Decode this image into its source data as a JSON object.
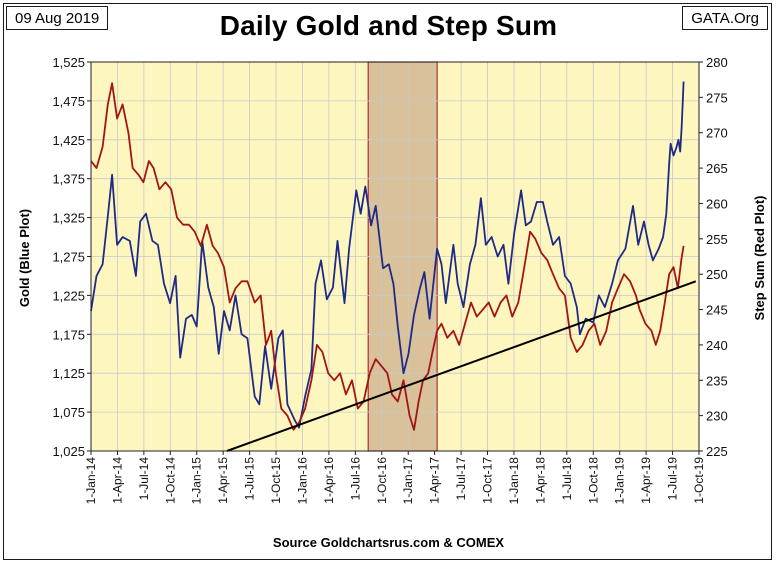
{
  "header": {
    "date": "09 Aug 2019",
    "source_org": "GATA.Org"
  },
  "chart_data": {
    "type": "line",
    "title": "Daily Gold and Step Sum",
    "source_note": "Source Goldchartsrus.com & COMEX",
    "ylabel_left": "Gold   (Blue Plot)",
    "ylabel_right": "Step Sum   (Red Plot)",
    "ylim_left": [
      1025,
      1525
    ],
    "ylim_right": [
      225,
      280
    ],
    "y_ticks_left": [
      "1,025",
      "1,075",
      "1,125",
      "1,175",
      "1,225",
      "1,275",
      "1,325",
      "1,375",
      "1,425",
      "1,475",
      "1,525"
    ],
    "y_ticks_right": [
      "225",
      "230",
      "235",
      "240",
      "245",
      "250",
      "255",
      "260",
      "265",
      "270",
      "275",
      "280"
    ],
    "x_ticks": [
      "1-Jan-14",
      "1-Apr-14",
      "1-Jul-14",
      "1-Oct-14",
      "1-Jan-15",
      "1-Apr-15",
      "1-Jul-15",
      "1-Oct-15",
      "1-Jan-16",
      "1-Apr-16",
      "1-Jul-16",
      "1-Oct-16",
      "1-Jan-17",
      "1-Apr-17",
      "1-Jul-17",
      "1-Oct-17",
      "1-Jan-18",
      "1-Apr-18",
      "1-Jul-18",
      "1-Oct-18",
      "1-Jan-19",
      "1-Apr-19",
      "1-Jul-19",
      "1-Oct-19"
    ],
    "x_range": [
      "2014-01-01",
      "2019-10-01"
    ],
    "grid": true,
    "background_color": "#fdf7bf",
    "shaded_region": {
      "x": [
        "2016-08-15",
        "2017-04-10"
      ],
      "color": "#d9c19a",
      "border": "#b03030"
    },
    "series": [
      {
        "name": "Gold",
        "axis": "left",
        "color": "#1f2a88",
        "points": [
          [
            "2014-01-01",
            1205
          ],
          [
            "2014-01-20",
            1250
          ],
          [
            "2014-02-10",
            1265
          ],
          [
            "2014-03-01",
            1330
          ],
          [
            "2014-03-15",
            1380
          ],
          [
            "2014-04-01",
            1290
          ],
          [
            "2014-04-20",
            1300
          ],
          [
            "2014-05-15",
            1295
          ],
          [
            "2014-06-05",
            1250
          ],
          [
            "2014-06-20",
            1320
          ],
          [
            "2014-07-10",
            1330
          ],
          [
            "2014-08-01",
            1295
          ],
          [
            "2014-08-20",
            1290
          ],
          [
            "2014-09-10",
            1240
          ],
          [
            "2014-10-01",
            1215
          ],
          [
            "2014-10-20",
            1250
          ],
          [
            "2014-11-05",
            1145
          ],
          [
            "2014-11-25",
            1195
          ],
          [
            "2014-12-15",
            1200
          ],
          [
            "2015-01-01",
            1185
          ],
          [
            "2015-01-20",
            1295
          ],
          [
            "2015-02-10",
            1235
          ],
          [
            "2015-03-01",
            1210
          ],
          [
            "2015-03-18",
            1150
          ],
          [
            "2015-04-05",
            1205
          ],
          [
            "2015-04-25",
            1180
          ],
          [
            "2015-05-15",
            1225
          ],
          [
            "2015-06-05",
            1175
          ],
          [
            "2015-06-25",
            1170
          ],
          [
            "2015-07-20",
            1095
          ],
          [
            "2015-08-05",
            1085
          ],
          [
            "2015-08-25",
            1160
          ],
          [
            "2015-09-15",
            1105
          ],
          [
            "2015-10-10",
            1170
          ],
          [
            "2015-10-25",
            1180
          ],
          [
            "2015-11-10",
            1085
          ],
          [
            "2015-12-05",
            1065
          ],
          [
            "2015-12-20",
            1055
          ],
          [
            "2016-01-10",
            1095
          ],
          [
            "2016-02-01",
            1130
          ],
          [
            "2016-02-15",
            1240
          ],
          [
            "2016-03-05",
            1270
          ],
          [
            "2016-03-25",
            1220
          ],
          [
            "2016-04-15",
            1235
          ],
          [
            "2016-05-01",
            1295
          ],
          [
            "2016-05-25",
            1215
          ],
          [
            "2016-06-10",
            1285
          ],
          [
            "2016-07-05",
            1360
          ],
          [
            "2016-07-20",
            1330
          ],
          [
            "2016-08-05",
            1365
          ],
          [
            "2016-08-25",
            1315
          ],
          [
            "2016-09-10",
            1340
          ],
          [
            "2016-10-05",
            1260
          ],
          [
            "2016-10-25",
            1265
          ],
          [
            "2016-11-10",
            1240
          ],
          [
            "2016-11-25",
            1185
          ],
          [
            "2016-12-15",
            1125
          ],
          [
            "2017-01-01",
            1150
          ],
          [
            "2017-01-20",
            1200
          ],
          [
            "2017-02-10",
            1235
          ],
          [
            "2017-02-25",
            1255
          ],
          [
            "2017-03-15",
            1195
          ],
          [
            "2017-04-10",
            1285
          ],
          [
            "2017-04-25",
            1265
          ],
          [
            "2017-05-10",
            1215
          ],
          [
            "2017-06-05",
            1290
          ],
          [
            "2017-06-20",
            1240
          ],
          [
            "2017-07-10",
            1210
          ],
          [
            "2017-08-01",
            1265
          ],
          [
            "2017-08-20",
            1290
          ],
          [
            "2017-09-08",
            1350
          ],
          [
            "2017-09-25",
            1290
          ],
          [
            "2017-10-15",
            1300
          ],
          [
            "2017-11-05",
            1275
          ],
          [
            "2017-11-25",
            1290
          ],
          [
            "2017-12-12",
            1240
          ],
          [
            "2018-01-01",
            1305
          ],
          [
            "2018-01-25",
            1360
          ],
          [
            "2018-02-10",
            1315
          ],
          [
            "2018-02-28",
            1320
          ],
          [
            "2018-03-20",
            1345
          ],
          [
            "2018-04-10",
            1345
          ],
          [
            "2018-04-25",
            1320
          ],
          [
            "2018-05-15",
            1290
          ],
          [
            "2018-06-05",
            1300
          ],
          [
            "2018-06-25",
            1250
          ],
          [
            "2018-07-15",
            1240
          ],
          [
            "2018-08-05",
            1210
          ],
          [
            "2018-08-16",
            1175
          ],
          [
            "2018-09-05",
            1195
          ],
          [
            "2018-10-01",
            1190
          ],
          [
            "2018-10-20",
            1225
          ],
          [
            "2018-11-10",
            1210
          ],
          [
            "2018-12-05",
            1240
          ],
          [
            "2018-12-25",
            1270
          ],
          [
            "2019-01-20",
            1285
          ],
          [
            "2019-02-15",
            1340
          ],
          [
            "2019-03-05",
            1290
          ],
          [
            "2019-03-25",
            1320
          ],
          [
            "2019-04-10",
            1290
          ],
          [
            "2019-04-25",
            1270
          ],
          [
            "2019-05-15",
            1285
          ],
          [
            "2019-05-30",
            1300
          ],
          [
            "2019-06-10",
            1330
          ],
          [
            "2019-06-20",
            1395
          ],
          [
            "2019-06-25",
            1420
          ],
          [
            "2019-07-05",
            1405
          ],
          [
            "2019-07-15",
            1415
          ],
          [
            "2019-07-22",
            1425
          ],
          [
            "2019-07-28",
            1410
          ],
          [
            "2019-08-02",
            1440
          ],
          [
            "2019-08-06",
            1475
          ],
          [
            "2019-08-09",
            1500
          ]
        ]
      },
      {
        "name": "Step Sum",
        "axis": "right",
        "color": "#a31515",
        "points": [
          [
            "2014-01-01",
            266
          ],
          [
            "2014-01-20",
            265
          ],
          [
            "2014-02-10",
            268
          ],
          [
            "2014-02-28",
            274
          ],
          [
            "2014-03-15",
            277
          ],
          [
            "2014-04-01",
            272
          ],
          [
            "2014-04-20",
            274
          ],
          [
            "2014-05-10",
            270
          ],
          [
            "2014-05-25",
            265
          ],
          [
            "2014-06-15",
            264
          ],
          [
            "2014-07-01",
            263
          ],
          [
            "2014-07-20",
            266
          ],
          [
            "2014-08-05",
            265
          ],
          [
            "2014-08-25",
            262
          ],
          [
            "2014-09-15",
            263
          ],
          [
            "2014-10-05",
            262
          ],
          [
            "2014-10-25",
            258
          ],
          [
            "2014-11-15",
            257
          ],
          [
            "2014-12-05",
            257
          ],
          [
            "2014-12-25",
            256
          ],
          [
            "2015-01-15",
            254
          ],
          [
            "2015-02-05",
            257
          ],
          [
            "2015-02-25",
            254
          ],
          [
            "2015-03-15",
            253
          ],
          [
            "2015-04-05",
            251
          ],
          [
            "2015-04-25",
            246
          ],
          [
            "2015-05-15",
            248
          ],
          [
            "2015-06-05",
            249
          ],
          [
            "2015-06-25",
            249
          ],
          [
            "2015-07-20",
            246
          ],
          [
            "2015-08-10",
            247
          ],
          [
            "2015-08-28",
            240
          ],
          [
            "2015-09-15",
            242
          ],
          [
            "2015-10-01",
            236
          ],
          [
            "2015-10-20",
            231
          ],
          [
            "2015-11-10",
            230
          ],
          [
            "2015-12-01",
            228
          ],
          [
            "2015-12-20",
            229
          ],
          [
            "2016-01-10",
            231
          ],
          [
            "2016-02-01",
            235
          ],
          [
            "2016-02-20",
            240
          ],
          [
            "2016-03-10",
            239
          ],
          [
            "2016-03-30",
            236
          ],
          [
            "2016-04-20",
            235
          ],
          [
            "2016-05-10",
            236
          ],
          [
            "2016-05-30",
            233
          ],
          [
            "2016-06-20",
            235
          ],
          [
            "2016-07-10",
            231
          ],
          [
            "2016-07-30",
            232
          ],
          [
            "2016-08-20",
            236
          ],
          [
            "2016-09-10",
            238
          ],
          [
            "2016-09-30",
            237
          ],
          [
            "2016-10-20",
            236
          ],
          [
            "2016-11-05",
            233
          ],
          [
            "2016-11-25",
            232
          ],
          [
            "2016-12-15",
            235
          ],
          [
            "2017-01-05",
            230
          ],
          [
            "2017-01-20",
            228
          ],
          [
            "2017-02-05",
            232
          ],
          [
            "2017-02-20",
            235
          ],
          [
            "2017-03-10",
            236
          ],
          [
            "2017-03-25",
            239
          ],
          [
            "2017-04-10",
            242
          ],
          [
            "2017-04-25",
            243
          ],
          [
            "2017-05-15",
            241
          ],
          [
            "2017-06-05",
            242
          ],
          [
            "2017-06-25",
            240
          ],
          [
            "2017-07-15",
            243
          ],
          [
            "2017-08-05",
            246
          ],
          [
            "2017-08-25",
            244
          ],
          [
            "2017-09-15",
            245
          ],
          [
            "2017-10-05",
            246
          ],
          [
            "2017-10-25",
            244
          ],
          [
            "2017-11-15",
            246
          ],
          [
            "2017-12-05",
            247
          ],
          [
            "2017-12-25",
            244
          ],
          [
            "2018-01-15",
            246
          ],
          [
            "2018-02-05",
            251
          ],
          [
            "2018-02-25",
            256
          ],
          [
            "2018-03-15",
            255
          ],
          [
            "2018-04-05",
            253
          ],
          [
            "2018-04-25",
            252
          ],
          [
            "2018-05-15",
            250
          ],
          [
            "2018-06-05",
            248
          ],
          [
            "2018-06-25",
            247
          ],
          [
            "2018-07-15",
            241
          ],
          [
            "2018-08-05",
            239
          ],
          [
            "2018-08-25",
            240
          ],
          [
            "2018-09-15",
            242
          ],
          [
            "2018-10-05",
            243
          ],
          [
            "2018-10-25",
            240
          ],
          [
            "2018-11-15",
            242
          ],
          [
            "2018-12-05",
            246
          ],
          [
            "2018-12-25",
            248
          ],
          [
            "2019-01-15",
            250
          ],
          [
            "2019-02-05",
            249
          ],
          [
            "2019-02-25",
            247
          ],
          [
            "2019-03-10",
            245
          ],
          [
            "2019-03-30",
            243
          ],
          [
            "2019-04-20",
            242
          ],
          [
            "2019-05-05",
            240
          ],
          [
            "2019-05-20",
            242
          ],
          [
            "2019-06-05",
            246
          ],
          [
            "2019-06-20",
            250
          ],
          [
            "2019-07-05",
            251
          ],
          [
            "2019-07-20",
            248
          ],
          [
            "2019-08-01",
            252
          ],
          [
            "2019-08-09",
            254
          ]
        ]
      },
      {
        "name": "Trend",
        "axis": "right",
        "color": "#000000",
        "points": [
          [
            "2015-04-15",
            225
          ],
          [
            "2019-09-20",
            249
          ]
        ]
      }
    ]
  }
}
